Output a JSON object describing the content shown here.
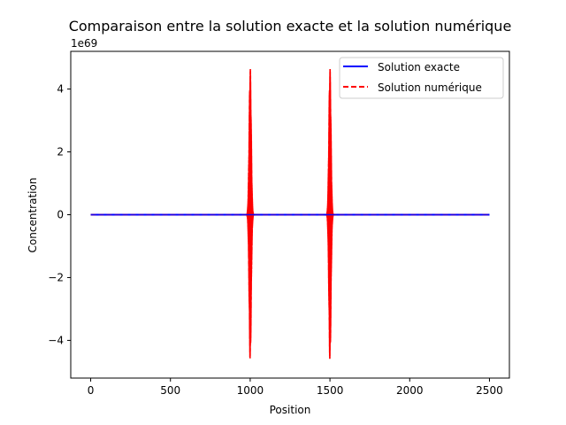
{
  "chart_data": {
    "type": "line",
    "title": "Comparaison entre la solution exacte et la solution numérique",
    "xlabel": "Position",
    "ylabel": "Concentration",
    "y_offset_label": "1e69",
    "xlim": [
      -125,
      2625
    ],
    "ylim": [
      -5.2,
      5.2
    ],
    "y_scale_exponent": 69,
    "xticks": [
      0,
      500,
      1000,
      1500,
      2000,
      2500
    ],
    "yticks": [
      -4,
      -2,
      0,
      2,
      4
    ],
    "grid": false,
    "legend": {
      "position": "top-right",
      "entries": [
        "Solution exacte",
        "Solution numérique"
      ]
    },
    "series": [
      {
        "name": "Solution exacte",
        "color": "#0000ff",
        "style": "solid",
        "x": [
          0,
          2500
        ],
        "y": [
          0,
          0
        ]
      },
      {
        "name": "Solution numérique",
        "color": "#ff0000",
        "style": "dashed",
        "x": [
          0,
          2500
        ],
        "y": [
          0,
          0
        ],
        "oscillation_bursts": [
          {
            "center_x": 1000,
            "half_width_x": 20,
            "amplitude": 4.7
          },
          {
            "center_x": 1500,
            "half_width_x": 20,
            "amplitude": 4.7
          }
        ]
      }
    ]
  }
}
